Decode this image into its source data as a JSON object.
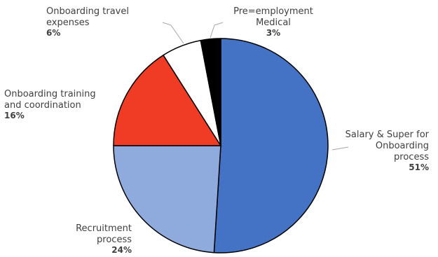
{
  "chart_data": {
    "type": "pie",
    "title": "",
    "slices": [
      {
        "lines": [
          "Salary & Super for",
          "Onboarding",
          "process"
        ],
        "pct_label": "51%",
        "value": 51,
        "color": "#4472C4"
      },
      {
        "lines": [
          "Recruitment",
          "process"
        ],
        "pct_label": "24%",
        "value": 24,
        "color": "#8FAADC"
      },
      {
        "lines": [
          "Onboarding training",
          "and coordination"
        ],
        "pct_label": "16%",
        "value": 16,
        "color": "#F03C24"
      },
      {
        "lines": [
          "Onboarding travel",
          "expenses"
        ],
        "pct_label": "6%",
        "value": 6,
        "color": "#FFFFFF"
      },
      {
        "lines": [
          "Pre=employment",
          "Medical"
        ],
        "pct_label": "3%",
        "value": 3,
        "color": "#000000"
      }
    ]
  }
}
